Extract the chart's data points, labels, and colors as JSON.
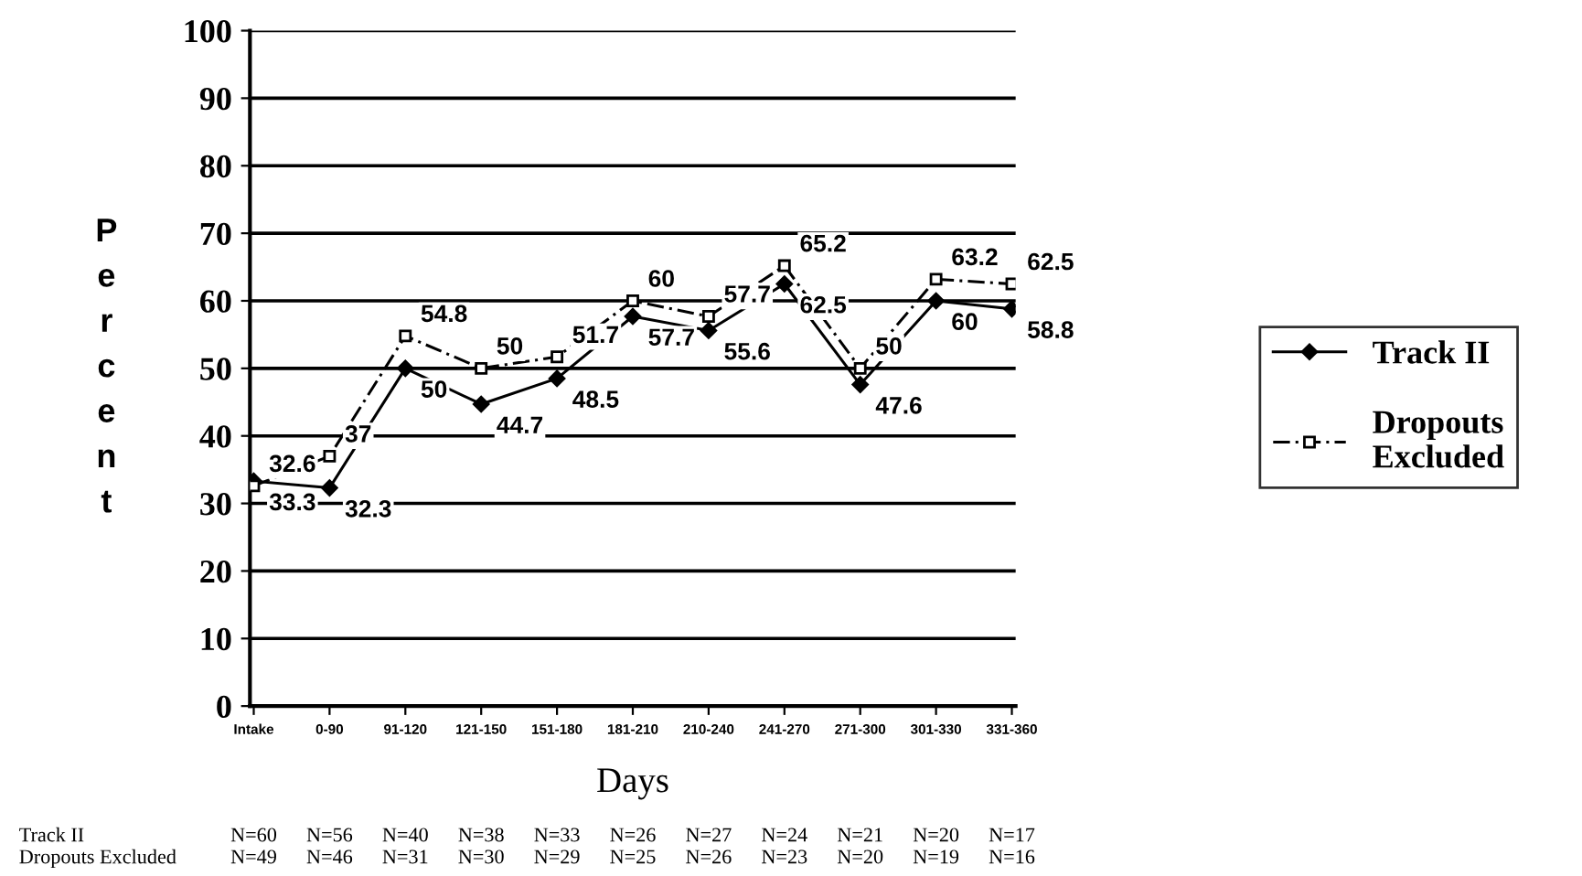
{
  "chart_data": {
    "type": "line",
    "xlabel": "Days",
    "ylabel": "Percent",
    "categories": [
      "Intake",
      "0-90",
      "91-120",
      "121-150",
      "151-180",
      "181-210",
      "210-240",
      "241-270",
      "271-300",
      "301-330",
      "331-360"
    ],
    "series": [
      {
        "name": "Track II",
        "color": "#000000",
        "marker": "diamond",
        "line_style": "solid",
        "values": [
          33.3,
          32.3,
          50,
          44.7,
          48.5,
          57.7,
          55.6,
          62.5,
          47.6,
          60,
          58.8
        ]
      },
      {
        "name": "Dropouts Excluded",
        "color": "#000000",
        "marker": "square",
        "line_style": "dashed",
        "values": [
          32.6,
          37,
          54.8,
          50,
          51.7,
          60,
          57.7,
          65.2,
          50,
          63.2,
          62.5
        ]
      }
    ],
    "ylim": [
      0,
      100
    ],
    "yticks": [
      0,
      10,
      20,
      30,
      40,
      50,
      60,
      70,
      80,
      90,
      100
    ],
    "grid": "y",
    "legend": "right",
    "data_labels": true,
    "annotations": [
      "Track II",
      "N=60",
      "N=56",
      "N=40",
      "N=38",
      "N=33",
      "N=26",
      "N=27",
      "N=24",
      "N=21",
      "N=20",
      "N=17",
      "Dropouts Excluded",
      "N=49",
      "N=46",
      "N=31",
      "N=30",
      "N=29",
      "N=25",
      "N=26",
      "N=23",
      "N=20",
      "N=19",
      "N=16"
    ]
  }
}
